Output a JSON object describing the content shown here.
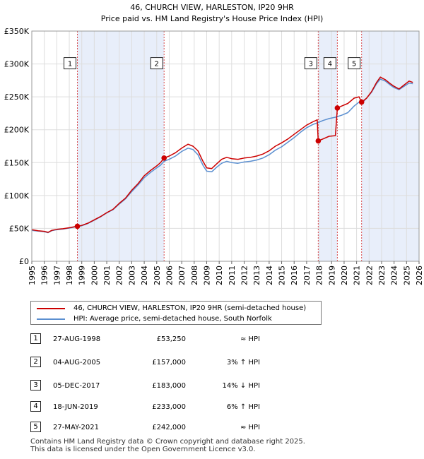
{
  "title_line1": "46, CHURCH VIEW, HARLESTON, IP20 9HR",
  "title_line2": "Price paid vs. HM Land Registry's House Price Index (HPI)",
  "colors": {
    "property": "#cc0000",
    "hpi": "#5b8fd0",
    "shade": "#e8eefa",
    "grid": "#dddddd",
    "marker_line": "#cc0000"
  },
  "chart_data": {
    "type": "line",
    "title": "46, CHURCH VIEW, HARLESTON, IP20 9HR — Price paid vs. HM Land Registry's House Price Index (HPI)",
    "xlim": [
      1995,
      2026
    ],
    "ylim": [
      0,
      350000
    ],
    "x_ticks": [
      "1995",
      "1996",
      "1997",
      "1998",
      "1999",
      "2000",
      "2001",
      "2002",
      "2003",
      "2004",
      "2005",
      "2006",
      "2007",
      "2008",
      "2009",
      "2010",
      "2011",
      "2012",
      "2013",
      "2014",
      "2015",
      "2016",
      "2017",
      "2018",
      "2019",
      "2020",
      "2021",
      "2022",
      "2023",
      "2024",
      "2025",
      "2026"
    ],
    "y_ticks": [
      {
        "value": 0,
        "label": "£0"
      },
      {
        "value": 50000,
        "label": "£50K"
      },
      {
        "value": 100000,
        "label": "£100K"
      },
      {
        "value": 150000,
        "label": "£150K"
      },
      {
        "value": 200000,
        "label": "£200K"
      },
      {
        "value": 250000,
        "label": "£250K"
      },
      {
        "value": 300000,
        "label": "£300K"
      },
      {
        "value": 350000,
        "label": "£350K"
      }
    ],
    "series": [
      {
        "name": "46, CHURCH VIEW, HARLESTON, IP20 9HR (semi-detached house)",
        "color": "#cc0000",
        "points": [
          [
            1995.0,
            48000
          ],
          [
            1995.5,
            46500
          ],
          [
            1996.0,
            45500
          ],
          [
            1996.3,
            44000
          ],
          [
            1996.6,
            47000
          ],
          [
            1997.0,
            48500
          ],
          [
            1997.5,
            49500
          ],
          [
            1998.0,
            51000
          ],
          [
            1998.4,
            52500
          ],
          [
            1998.65,
            53250
          ],
          [
            1999.0,
            54500
          ],
          [
            1999.5,
            58000
          ],
          [
            2000.0,
            63000
          ],
          [
            2000.5,
            68000
          ],
          [
            2001.0,
            74000
          ],
          [
            2001.5,
            79000
          ],
          [
            2002.0,
            88000
          ],
          [
            2002.5,
            96000
          ],
          [
            2003.0,
            108000
          ],
          [
            2003.5,
            118000
          ],
          [
            2004.0,
            130000
          ],
          [
            2004.5,
            138000
          ],
          [
            2005.0,
            145000
          ],
          [
            2005.3,
            150000
          ],
          [
            2005.59,
            157000
          ],
          [
            2006.0,
            160000
          ],
          [
            2006.5,
            165000
          ],
          [
            2007.0,
            172000
          ],
          [
            2007.5,
            178000
          ],
          [
            2007.9,
            175000
          ],
          [
            2008.3,
            168000
          ],
          [
            2008.7,
            152000
          ],
          [
            2009.0,
            142000
          ],
          [
            2009.4,
            141000
          ],
          [
            2009.8,
            148000
          ],
          [
            2010.2,
            155000
          ],
          [
            2010.6,
            158000
          ],
          [
            2011.0,
            156000
          ],
          [
            2011.5,
            155000
          ],
          [
            2012.0,
            157000
          ],
          [
            2012.5,
            158000
          ],
          [
            2013.0,
            160000
          ],
          [
            2013.5,
            163000
          ],
          [
            2014.0,
            168000
          ],
          [
            2014.5,
            175000
          ],
          [
            2015.0,
            180000
          ],
          [
            2015.5,
            186000
          ],
          [
            2016.0,
            193000
          ],
          [
            2016.5,
            200000
          ],
          [
            2017.0,
            207000
          ],
          [
            2017.5,
            212000
          ],
          [
            2017.85,
            215000
          ],
          [
            2017.93,
            183000
          ],
          [
            2018.3,
            186000
          ],
          [
            2018.8,
            190000
          ],
          [
            2019.3,
            191000
          ],
          [
            2019.46,
            233000
          ],
          [
            2019.8,
            236000
          ],
          [
            2020.3,
            240000
          ],
          [
            2020.8,
            248000
          ],
          [
            2021.2,
            250000
          ],
          [
            2021.4,
            242000
          ],
          [
            2021.8,
            248000
          ],
          [
            2022.2,
            258000
          ],
          [
            2022.6,
            272000
          ],
          [
            2022.9,
            280000
          ],
          [
            2023.3,
            276000
          ],
          [
            2023.7,
            270000
          ],
          [
            2024.0,
            266000
          ],
          [
            2024.4,
            262000
          ],
          [
            2024.8,
            268000
          ],
          [
            2025.2,
            274000
          ],
          [
            2025.5,
            272000
          ]
        ]
      },
      {
        "name": "HPI: Average price, semi-detached house, South Norfolk",
        "color": "#5b8fd0",
        "points": [
          [
            1995.0,
            47000
          ],
          [
            1995.5,
            46000
          ],
          [
            1996.0,
            45000
          ],
          [
            1996.3,
            43500
          ],
          [
            1996.6,
            46500
          ],
          [
            1997.0,
            48000
          ],
          [
            1997.5,
            49000
          ],
          [
            1998.0,
            50500
          ],
          [
            1998.4,
            52000
          ],
          [
            1998.65,
            53000
          ],
          [
            1999.0,
            54000
          ],
          [
            1999.5,
            57500
          ],
          [
            2000.0,
            62500
          ],
          [
            2000.5,
            67500
          ],
          [
            2001.0,
            73500
          ],
          [
            2001.5,
            78500
          ],
          [
            2002.0,
            87000
          ],
          [
            2002.5,
            95000
          ],
          [
            2003.0,
            106000
          ],
          [
            2003.5,
            116000
          ],
          [
            2004.0,
            127000
          ],
          [
            2004.5,
            135000
          ],
          [
            2005.0,
            142000
          ],
          [
            2005.3,
            146000
          ],
          [
            2005.59,
            152000
          ],
          [
            2006.0,
            155000
          ],
          [
            2006.5,
            160000
          ],
          [
            2007.0,
            167000
          ],
          [
            2007.5,
            172000
          ],
          [
            2007.9,
            170000
          ],
          [
            2008.3,
            162000
          ],
          [
            2008.7,
            146000
          ],
          [
            2009.0,
            137000
          ],
          [
            2009.4,
            136000
          ],
          [
            2009.8,
            143000
          ],
          [
            2010.2,
            149000
          ],
          [
            2010.6,
            152000
          ],
          [
            2011.0,
            150000
          ],
          [
            2011.5,
            149000
          ],
          [
            2012.0,
            151000
          ],
          [
            2012.5,
            152000
          ],
          [
            2013.0,
            154000
          ],
          [
            2013.5,
            157000
          ],
          [
            2014.0,
            162000
          ],
          [
            2014.5,
            169000
          ],
          [
            2015.0,
            174000
          ],
          [
            2015.5,
            181000
          ],
          [
            2016.0,
            188000
          ],
          [
            2016.5,
            196000
          ],
          [
            2017.0,
            203000
          ],
          [
            2017.5,
            208000
          ],
          [
            2017.93,
            211000
          ],
          [
            2018.3,
            214000
          ],
          [
            2018.8,
            217000
          ],
          [
            2019.3,
            219000
          ],
          [
            2019.46,
            220000
          ],
          [
            2019.8,
            222000
          ],
          [
            2020.3,
            226000
          ],
          [
            2020.8,
            236000
          ],
          [
            2021.2,
            242000
          ],
          [
            2021.4,
            240000
          ],
          [
            2021.8,
            248000
          ],
          [
            2022.2,
            257000
          ],
          [
            2022.6,
            270000
          ],
          [
            2022.9,
            277000
          ],
          [
            2023.3,
            274000
          ],
          [
            2023.7,
            268000
          ],
          [
            2024.0,
            264000
          ],
          [
            2024.4,
            261000
          ],
          [
            2024.8,
            266000
          ],
          [
            2025.2,
            271000
          ],
          [
            2025.5,
            270000
          ]
        ]
      }
    ],
    "sales": [
      {
        "id": "1",
        "x": 1998.65,
        "value": 53250
      },
      {
        "id": "2",
        "x": 2005.59,
        "value": 157000
      },
      {
        "id": "3",
        "x": 2017.93,
        "value": 183000
      },
      {
        "id": "4",
        "x": 2019.46,
        "value": 233000
      },
      {
        "id": "5",
        "x": 2021.4,
        "value": 242000
      }
    ],
    "shaded_ranges": [
      [
        1998.65,
        2005.59
      ],
      [
        2017.93,
        2019.46
      ],
      [
        2021.4,
        2026
      ]
    ],
    "label_value": 300000
  },
  "legend": {
    "property_label": "46, CHURCH VIEW, HARLESTON, IP20 9HR (semi-detached house)",
    "hpi_label": "HPI: Average price, semi-detached house, South Norfolk"
  },
  "transactions": [
    {
      "num": "1",
      "date": "27-AUG-1998",
      "price": "£53,250",
      "hpi": "≈ HPI"
    },
    {
      "num": "2",
      "date": "04-AUG-2005",
      "price": "£157,000",
      "hpi": "3% ↑ HPI"
    },
    {
      "num": "3",
      "date": "05-DEC-2017",
      "price": "£183,000",
      "hpi": "14% ↓ HPI"
    },
    {
      "num": "4",
      "date": "18-JUN-2019",
      "price": "£233,000",
      "hpi": "6% ↑ HPI"
    },
    {
      "num": "5",
      "date": "27-MAY-2021",
      "price": "£242,000",
      "hpi": "≈ HPI"
    }
  ],
  "footer": {
    "line1": "Contains HM Land Registry data © Crown copyright and database right 2025.",
    "line2": "This data is licensed under the Open Government Licence v3.0."
  }
}
